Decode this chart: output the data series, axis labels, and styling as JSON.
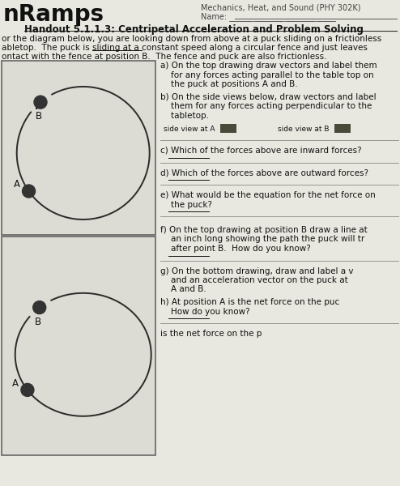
{
  "title_left": "nRamps",
  "title_right_line1": "Mechanics, Heat, and Sound (PHY 302K)",
  "title_right_line2": "Name: ___________________________",
  "handout_title": "Handout 5.1.1.3: Centripetal Acceleration and Problem Solving",
  "intro_line1": "or the diagram below, you are looking down from above at a puck sliding on a frictionless",
  "intro_line2": "abletop.  The puck is sliding at a constant speed along a circular fence and just leaves",
  "intro_line3": "ontact with the fence at position B.  The fence and puck are also frictionless.",
  "underline_constant_speed": true,
  "q_a": "a) On the top drawing draw vectors and label them",
  "q_a2": "    for any forces acting parallel to the table top on",
  "q_a3": "    the puck at positions A and B.",
  "q_b": "b) On the side views below, draw vectors and label",
  "q_b2": "    them for any forces acting perpendicular to the",
  "q_b3": "    tabletop.",
  "side_view_a": "side view at A",
  "side_view_b": "side view at B",
  "q_c": "c) Which of the forces above are inward forces?",
  "q_d": "d) Which of the forces above are outward forces?",
  "q_e": "e) What would be the equation for the net force on",
  "q_e2": "    the puck?",
  "q_f": "f) On the top drawing at position B draw a line at",
  "q_f2": "    an inch long showing the path the puck will tr",
  "q_f3": "    after point B.  How do you know?",
  "q_g": "g) On the bottom drawing, draw and label a v",
  "q_g2": "    and an acceleration vector on the puck at",
  "q_g3": "    A and B.",
  "q_h": "h) At position A is the net force on the puc",
  "q_h2": "    How do you know?",
  "q_last": "is the net force on the p",
  "bg_color": "#d8d8d0",
  "page_color": "#e8e8e0",
  "box_bg": "#dcdcd4",
  "circle_color": "#2a2a2a",
  "puck_color": "#333333",
  "text_color": "#111111",
  "line_color": "#888888"
}
